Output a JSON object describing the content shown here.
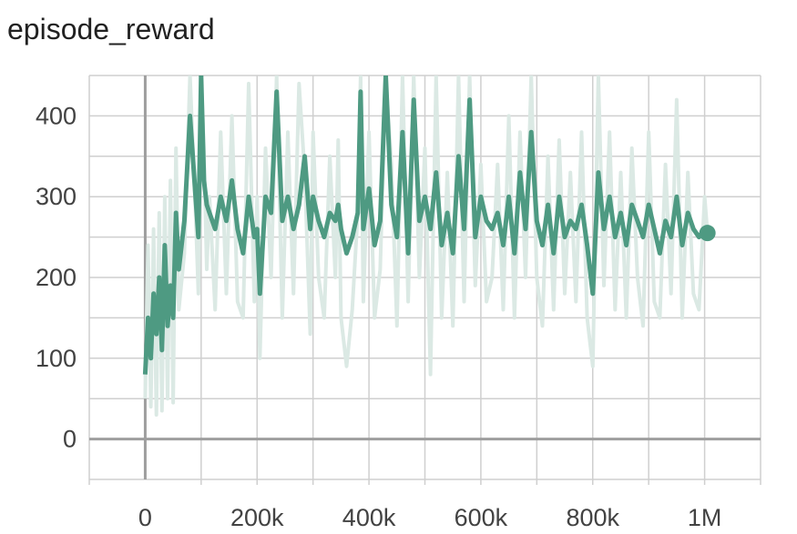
{
  "chart_data": {
    "type": "line",
    "title": "episode_reward",
    "xlabel": "",
    "ylabel": "",
    "xlim": [
      -100000,
      1100000
    ],
    "ylim": [
      -50,
      450
    ],
    "grid": true,
    "x_ticks": [
      {
        "value": 0,
        "label": "0"
      },
      {
        "value": 200000,
        "label": "200k"
      },
      {
        "value": 400000,
        "label": "400k"
      },
      {
        "value": 600000,
        "label": "600k"
      },
      {
        "value": 800000,
        "label": "800k"
      },
      {
        "value": 1000000,
        "label": "1M"
      }
    ],
    "y_ticks": [
      {
        "value": 0,
        "label": "0"
      },
      {
        "value": 100,
        "label": "100"
      },
      {
        "value": 200,
        "label": "200"
      },
      {
        "value": 300,
        "label": "300"
      },
      {
        "value": 400,
        "label": "400"
      }
    ],
    "colors": {
      "smoothed": "#4e9a82",
      "raw": "#dbe9e4",
      "axis": "#9e9e9e",
      "grid": "#cfcfcf"
    },
    "series": [
      {
        "role": "smoothed",
        "x": [
          0,
          5000,
          10000,
          15000,
          20000,
          25000,
          30000,
          35000,
          40000,
          45000,
          50000,
          55000,
          60000,
          70000,
          80000,
          90000,
          95000,
          100000,
          105000,
          110000,
          115000,
          125000,
          135000,
          145000,
          155000,
          165000,
          175000,
          185000,
          195000,
          200000,
          205000,
          215000,
          225000,
          235000,
          245000,
          255000,
          265000,
          275000,
          285000,
          295000,
          300000,
          310000,
          320000,
          330000,
          340000,
          345000,
          350000,
          360000,
          370000,
          380000,
          385000,
          390000,
          400000,
          410000,
          420000,
          430000,
          440000,
          450000,
          460000,
          470000,
          480000,
          490000,
          500000,
          510000,
          520000,
          530000,
          540000,
          550000,
          560000,
          570000,
          580000,
          590000,
          600000,
          610000,
          620000,
          630000,
          640000,
          650000,
          660000,
          670000,
          680000,
          690000,
          700000,
          710000,
          720000,
          730000,
          740000,
          750000,
          760000,
          770000,
          780000,
          790000,
          800000,
          810000,
          820000,
          830000,
          840000,
          850000,
          860000,
          870000,
          880000,
          890000,
          900000,
          910000,
          920000,
          930000,
          940000,
          950000,
          960000,
          970000,
          980000,
          990000,
          1000000,
          1005000
        ],
        "values": [
          80,
          150,
          100,
          180,
          130,
          200,
          110,
          240,
          140,
          190,
          150,
          280,
          210,
          270,
          400,
          300,
          250,
          450,
          320,
          290,
          280,
          260,
          300,
          270,
          320,
          260,
          230,
          300,
          250,
          260,
          180,
          300,
          280,
          430,
          270,
          300,
          260,
          290,
          350,
          260,
          300,
          270,
          250,
          280,
          270,
          290,
          260,
          230,
          250,
          280,
          430,
          260,
          310,
          240,
          270,
          450,
          290,
          250,
          380,
          230,
          420,
          270,
          300,
          260,
          330,
          240,
          280,
          230,
          350,
          260,
          420,
          250,
          300,
          270,
          260,
          280,
          240,
          300,
          230,
          330,
          260,
          380,
          270,
          240,
          290,
          230,
          300,
          250,
          270,
          260,
          290,
          240,
          180,
          330,
          260,
          300,
          250,
          280,
          240,
          290,
          270,
          250,
          290,
          260,
          230,
          270,
          250,
          300,
          240,
          280,
          260,
          250,
          260,
          255
        ]
      },
      {
        "role": "raw",
        "x": [
          0,
          5000,
          10000,
          15000,
          20000,
          25000,
          30000,
          35000,
          40000,
          45000,
          50000,
          55000,
          60000,
          70000,
          80000,
          90000,
          95000,
          100000,
          105000,
          110000,
          115000,
          125000,
          135000,
          145000,
          155000,
          165000,
          175000,
          185000,
          195000,
          200000,
          205000,
          215000,
          225000,
          235000,
          245000,
          255000,
          265000,
          275000,
          285000,
          295000,
          300000,
          310000,
          320000,
          330000,
          340000,
          345000,
          350000,
          360000,
          370000,
          380000,
          385000,
          390000,
          400000,
          410000,
          420000,
          430000,
          440000,
          450000,
          460000,
          470000,
          480000,
          490000,
          500000,
          510000,
          520000,
          530000,
          540000,
          550000,
          560000,
          570000,
          580000,
          590000,
          600000,
          610000,
          620000,
          630000,
          640000,
          650000,
          660000,
          670000,
          680000,
          690000,
          700000,
          710000,
          720000,
          730000,
          740000,
          750000,
          760000,
          770000,
          780000,
          790000,
          800000,
          810000,
          820000,
          830000,
          840000,
          850000,
          860000,
          870000,
          880000,
          890000,
          900000,
          910000,
          920000,
          930000,
          940000,
          950000,
          960000,
          970000,
          980000,
          990000,
          1000000,
          1005000
        ],
        "values": [
          50,
          240,
          40,
          260,
          30,
          280,
          35,
          300,
          50,
          320,
          45,
          360,
          160,
          230,
          450,
          280,
          180,
          450,
          360,
          210,
          300,
          160,
          380,
          180,
          400,
          170,
          150,
          440,
          170,
          300,
          100,
          360,
          200,
          450,
          150,
          380,
          180,
          440,
          330,
          130,
          380,
          200,
          150,
          350,
          200,
          370,
          150,
          90,
          160,
          280,
          450,
          170,
          380,
          150,
          210,
          450,
          340,
          140,
          450,
          170,
          450,
          200,
          360,
          80,
          450,
          150,
          330,
          140,
          450,
          170,
          450,
          190,
          340,
          170,
          200,
          340,
          160,
          400,
          150,
          380,
          200,
          450,
          200,
          140,
          350,
          160,
          370,
          180,
          330,
          170,
          380,
          150,
          90,
          450,
          190,
          380,
          160,
          330,
          150,
          360,
          200,
          140,
          380,
          170,
          150,
          340,
          180,
          420,
          150,
          330,
          180,
          160,
          300,
          255
        ]
      }
    ]
  }
}
